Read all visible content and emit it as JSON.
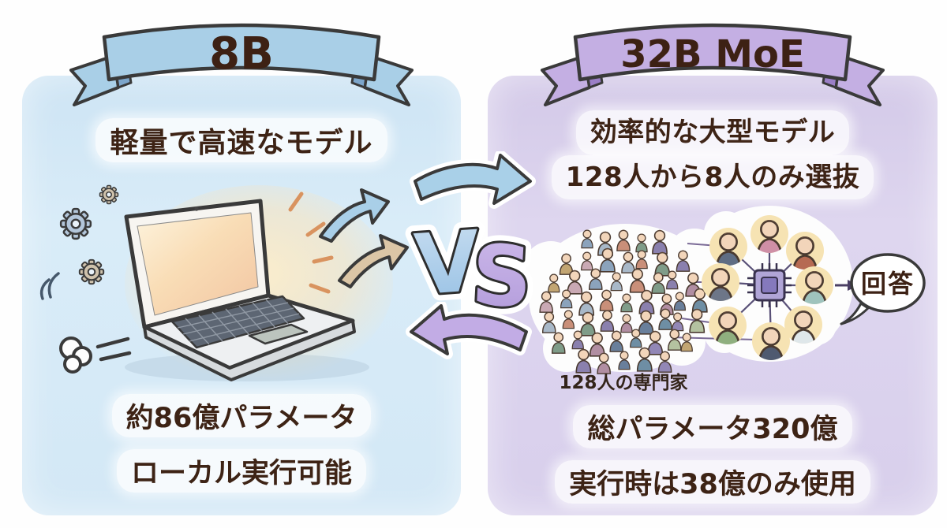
{
  "title": "8B vs 32B MoE model comparison infographic",
  "text_color": "#3d2315",
  "left": {
    "banner_label": "8B",
    "heading": "軽量で高速なモデル",
    "stat_line1": "約86億パラメータ",
    "stat_line2": "ローカル実行可能",
    "panel_color": "#d5e9f6",
    "banner_color": "#a9cfe7",
    "banner_fold_color": "#7da6cb",
    "icons": [
      "gears-icon",
      "laptop-icon",
      "speed-puff-icon",
      "sparkle-rays-icon",
      "output-arrows-icon"
    ]
  },
  "center": {
    "vs_v": "V",
    "vs_s": "S",
    "vs_v_color": "#a6cbe8",
    "vs_s_color": "#bda7e2",
    "top_arrow_color": "#a9d0e8",
    "bottom_arrow_color": "#c2ace5",
    "icons": [
      "arrow-right-icon",
      "arrow-left-icon"
    ]
  },
  "right": {
    "banner_label": "32B MoE",
    "heading_line1": "効率的な大型モデル",
    "heading_line2": "128人から8人のみ選抜",
    "crowd_caption": "128人の専門家",
    "answer_label": "回答",
    "stat_line1": "総パラメータ320億",
    "stat_line2": "実行時は38億のみ使用",
    "panel_color": "#dbd2ed",
    "banner_color": "#c4afe3",
    "banner_fold_color": "#9b7fc7",
    "expert_circle_color": "#f6e3b3",
    "chip_color": "#8a7cc2",
    "icons": [
      "crowd-icon",
      "chip-icon",
      "expert-avatar-icon",
      "speech-bubble-icon"
    ]
  }
}
